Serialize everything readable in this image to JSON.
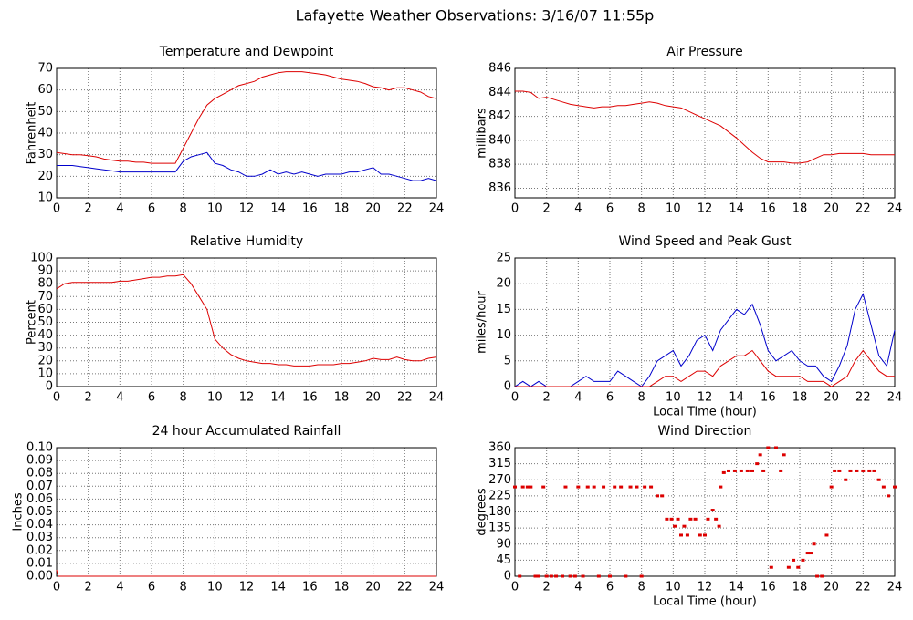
{
  "title": "Lafayette Weather Observations: 3/16/07 11:55p",
  "chart_data": [
    {
      "type": "line",
      "title": "Temperature and Dewpoint",
      "y_label": "Fahrenheit",
      "x": [
        0,
        0.5,
        1,
        1.5,
        2,
        2.5,
        3,
        3.5,
        4,
        4.5,
        5,
        5.5,
        6,
        6.5,
        7,
        7.5,
        8,
        8.5,
        9,
        9.5,
        10,
        10.5,
        11,
        11.5,
        12,
        12.5,
        13,
        13.5,
        14,
        14.5,
        15,
        15.5,
        16,
        16.5,
        17,
        17.5,
        18,
        18.5,
        19,
        19.5,
        20,
        20.5,
        21,
        21.5,
        22,
        22.5,
        23,
        23.5,
        24
      ],
      "series": [
        {
          "color": "#dd0000",
          "values": [
            31,
            30.5,
            30,
            30,
            29.5,
            29,
            28,
            27.5,
            27,
            27,
            26.5,
            26.5,
            26,
            26,
            26,
            26,
            33,
            40,
            47,
            53,
            56,
            58,
            60,
            62,
            63,
            64,
            66,
            67,
            68,
            68.5,
            68.5,
            68.5,
            68,
            67.5,
            67,
            66,
            65,
            64.5,
            64,
            63,
            61.5,
            61,
            60,
            61,
            61,
            60,
            59,
            57,
            56
          ]
        },
        {
          "color": "#0000cc",
          "values": [
            25,
            25,
            25,
            24.5,
            24,
            23.5,
            23,
            22.5,
            22,
            22,
            22,
            22,
            22,
            22,
            22,
            22,
            27,
            29,
            30,
            31,
            26,
            25,
            23,
            22,
            20,
            20,
            21,
            23,
            21,
            22,
            21,
            22,
            21,
            20,
            21,
            21,
            21,
            22,
            22,
            23,
            24,
            21,
            21,
            20,
            19,
            18,
            18,
            19,
            18
          ]
        }
      ],
      "xlim": [
        0,
        24
      ],
      "xticks": [
        0,
        2,
        4,
        6,
        8,
        10,
        12,
        14,
        16,
        18,
        20,
        22,
        24
      ],
      "ylim": [
        10,
        70
      ],
      "yticks": [
        10,
        20,
        30,
        40,
        50,
        60,
        70
      ],
      "grid": true
    },
    {
      "type": "line",
      "title": "Air Pressure",
      "y_label": "millibars",
      "x": [
        0,
        0.5,
        1,
        1.5,
        2,
        2.5,
        3,
        3.5,
        4,
        4.5,
        5,
        5.5,
        6,
        6.5,
        7,
        7.5,
        8,
        8.5,
        9,
        9.5,
        10,
        10.5,
        11,
        11.5,
        12,
        12.5,
        13,
        13.5,
        14,
        14.5,
        15,
        15.5,
        16,
        16.5,
        17,
        17.5,
        18,
        18.5,
        19,
        19.5,
        20,
        20.5,
        21,
        21.5,
        22,
        22.5,
        23,
        23.5,
        24
      ],
      "series": [
        {
          "color": "#dd0000",
          "values": [
            844.1,
            844.1,
            844,
            843.5,
            843.6,
            843.4,
            843.2,
            843,
            842.9,
            842.8,
            842.7,
            842.8,
            842.8,
            842.9,
            842.9,
            843,
            843.1,
            843.2,
            843.1,
            842.9,
            842.8,
            842.7,
            842.4,
            842.1,
            841.8,
            841.5,
            841.2,
            840.7,
            840.2,
            839.6,
            839,
            838.5,
            838.2,
            838.2,
            838.2,
            838.1,
            838.1,
            838.2,
            838.5,
            838.8,
            838.8,
            838.9,
            838.9,
            838.9,
            838.9,
            838.8,
            838.8,
            838.8,
            838.8
          ]
        }
      ],
      "xlim": [
        0,
        24
      ],
      "xticks": [
        0,
        2,
        4,
        6,
        8,
        10,
        12,
        14,
        16,
        18,
        20,
        22,
        24
      ],
      "ylim": [
        835.2,
        846
      ],
      "yticks": [
        836,
        838,
        840,
        842,
        844,
        846
      ],
      "grid": true
    },
    {
      "type": "line",
      "title": "Relative Humidity",
      "y_label": "Percent",
      "x": [
        0,
        0.5,
        1,
        1.5,
        2,
        2.5,
        3,
        3.5,
        4,
        4.5,
        5,
        5.5,
        6,
        6.5,
        7,
        7.5,
        8,
        8.5,
        9,
        9.5,
        10,
        10.5,
        11,
        11.5,
        12,
        12.5,
        13,
        13.5,
        14,
        14.5,
        15,
        15.5,
        16,
        16.5,
        17,
        17.5,
        18,
        18.5,
        19,
        19.5,
        20,
        20.5,
        21,
        21.5,
        22,
        22.5,
        23,
        23.5,
        24
      ],
      "series": [
        {
          "color": "#dd0000",
          "values": [
            76,
            80,
            81,
            81,
            81,
            81,
            81,
            81,
            82,
            82,
            83,
            84,
            85,
            85,
            86,
            86,
            87,
            80,
            70,
            60,
            37,
            30,
            25,
            22,
            20,
            19,
            18,
            18,
            17,
            17,
            16,
            16,
            16,
            17,
            17,
            17,
            18,
            18,
            19,
            20,
            22,
            21,
            21,
            23,
            21,
            20,
            20,
            22,
            23
          ]
        }
      ],
      "xlim": [
        0,
        24
      ],
      "xticks": [
        0,
        2,
        4,
        6,
        8,
        10,
        12,
        14,
        16,
        18,
        20,
        22,
        24
      ],
      "ylim": [
        0,
        100
      ],
      "yticks": [
        0,
        10,
        20,
        30,
        40,
        50,
        60,
        70,
        80,
        90,
        100
      ],
      "grid": true
    },
    {
      "type": "line",
      "title": "Wind Speed and Peak Gust",
      "y_label": "miles/hour",
      "x_label": "Local Time (hour)",
      "x": [
        0,
        0.5,
        1,
        1.5,
        2,
        2.5,
        3,
        3.5,
        4,
        4.5,
        5,
        5.5,
        6,
        6.5,
        7,
        7.5,
        8,
        8.5,
        9,
        9.5,
        10,
        10.5,
        11,
        11.5,
        12,
        12.5,
        13,
        13.5,
        14,
        14.5,
        15,
        15.5,
        16,
        16.5,
        17,
        17.5,
        18,
        18.5,
        19,
        19.5,
        20,
        20.5,
        21,
        21.5,
        22,
        22.5,
        23,
        23.5,
        24
      ],
      "series": [
        {
          "color": "#0000cc",
          "values": [
            0,
            1,
            0,
            1,
            0,
            0,
            0,
            0,
            1,
            2,
            1,
            1,
            1,
            3,
            2,
            1,
            0,
            2,
            5,
            6,
            7,
            4,
            6,
            9,
            10,
            7,
            11,
            13,
            15,
            14,
            16,
            12,
            7,
            5,
            6,
            7,
            5,
            4,
            4,
            2,
            1,
            4,
            8,
            15,
            18,
            12,
            6,
            4,
            11
          ]
        },
        {
          "color": "#dd0000",
          "values": [
            0,
            0,
            0,
            0,
            0,
            0,
            0,
            0,
            0,
            0,
            0,
            0,
            0,
            0,
            0,
            0,
            0,
            0,
            1,
            2,
            2,
            1,
            2,
            3,
            3,
            2,
            4,
            5,
            6,
            6,
            7,
            5,
            3,
            2,
            2,
            2,
            2,
            1,
            1,
            1,
            0,
            1,
            2,
            5,
            7,
            5,
            3,
            2,
            2
          ]
        }
      ],
      "xlim": [
        0,
        24
      ],
      "xticks": [
        0,
        2,
        4,
        6,
        8,
        10,
        12,
        14,
        16,
        18,
        20,
        22,
        24
      ],
      "ylim": [
        0,
        25
      ],
      "yticks": [
        0,
        5,
        10,
        15,
        20,
        25
      ],
      "grid": true
    },
    {
      "type": "line",
      "title": "24 hour Accumulated Rainfall",
      "y_label": "Inches",
      "x": [
        0,
        0.1,
        24
      ],
      "series": [
        {
          "color": "#dd0000",
          "values": [
            0.005,
            0,
            0
          ]
        }
      ],
      "xlim": [
        0,
        24
      ],
      "xticks": [
        0,
        2,
        4,
        6,
        8,
        10,
        12,
        14,
        16,
        18,
        20,
        22,
        24
      ],
      "ylim": [
        0,
        0.1
      ],
      "yticks": [
        {
          "value": 0,
          "label": "0.00"
        },
        {
          "value": 0.01,
          "label": "0.01"
        },
        {
          "value": 0.02,
          "label": "0.02"
        },
        {
          "value": 0.03,
          "label": "0.03"
        },
        {
          "value": 0.04,
          "label": "0.04"
        },
        {
          "value": 0.05,
          "label": "0.05"
        },
        {
          "value": 0.06,
          "label": "0.06"
        },
        {
          "value": 0.07,
          "label": "0.07"
        },
        {
          "value": 0.08,
          "label": "0.08"
        },
        {
          "value": 0.09,
          "label": "0.09"
        },
        {
          "value": 0.1,
          "label": "0.10"
        }
      ],
      "grid": true
    },
    {
      "type": "scatter",
      "title": "Wind Direction",
      "y_label": "degrees",
      "x_label": "Local Time (hour)",
      "color": "#dd0000",
      "x": [
        0,
        0.3,
        0.5,
        0.8,
        1,
        1.3,
        1.5,
        1.8,
        2,
        2.3,
        2.6,
        3,
        3.2,
        3.5,
        3.8,
        4,
        4.3,
        4.6,
        5,
        5.3,
        5.6,
        6,
        6.3,
        6.7,
        7,
        7.3,
        7.7,
        8,
        8.2,
        8.6,
        9,
        9.3,
        9.6,
        9.9,
        10.1,
        10.3,
        10.5,
        10.7,
        10.9,
        11.1,
        11.4,
        11.7,
        12,
        12.2,
        12.5,
        12.7,
        12.9,
        13,
        13.2,
        13.5,
        13.9,
        14.3,
        14.7,
        15,
        15.3,
        15.5,
        15.7,
        16,
        16.2,
        16.5,
        16.8,
        17,
        17.3,
        17.6,
        17.9,
        18.2,
        18.5,
        18.7,
        18.9,
        19.1,
        19.4,
        19.7,
        20,
        20.2,
        20.5,
        20.9,
        21.2,
        21.6,
        22,
        22.4,
        22.7,
        23,
        23.3,
        23.6,
        24
      ],
      "values": [
        250,
        0,
        250,
        250,
        250,
        0,
        0,
        250,
        0,
        0,
        0,
        0,
        250,
        0,
        0,
        250,
        0,
        250,
        250,
        0,
        250,
        0,
        250,
        250,
        0,
        250,
        250,
        0,
        250,
        250,
        225,
        225,
        160,
        160,
        140,
        160,
        115,
        140,
        115,
        160,
        160,
        115,
        115,
        160,
        185,
        160,
        140,
        250,
        290,
        295,
        295,
        295,
        295,
        295,
        315,
        340,
        295,
        360,
        25,
        360,
        295,
        340,
        25,
        45,
        25,
        45,
        65,
        65,
        90,
        0,
        0,
        115,
        250,
        295,
        295,
        270,
        295,
        295,
        295,
        295,
        295,
        270,
        250,
        225,
        250
      ],
      "xlim": [
        0,
        24
      ],
      "xticks": [
        0,
        2,
        4,
        6,
        8,
        10,
        12,
        14,
        16,
        18,
        20,
        22,
        24
      ],
      "ylim": [
        0,
        360
      ],
      "yticks": [
        0,
        45,
        90,
        135,
        180,
        225,
        270,
        315,
        360
      ],
      "grid": true
    }
  ]
}
